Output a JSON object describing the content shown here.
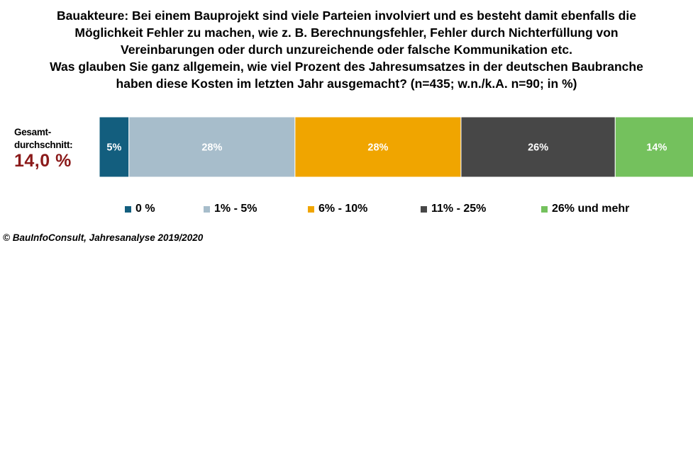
{
  "title_lines": [
    "Bauakteure: Bei einem Bauprojekt sind viele Parteien involviert und es besteht damit ebenfalls die",
    "Möglichkeit Fehler zu machen, wie z. B. Berechnungsfehler, Fehler durch Nichterfüllung von",
    "Vereinbarungen oder durch unzureichende oder falsche Kommunikation etc.",
    "Was glauben Sie ganz allgemein, wie viel Prozent des Jahresumsatzes in der deutschen Baubranche",
    "haben diese Kosten im letzten Jahr ausgemacht? (n=435; w.n./k.A. n=90; in %)"
  ],
  "average": {
    "label_lines": [
      "Gesamt-",
      "durchschnitt:"
    ],
    "value": "14,0 %"
  },
  "source": "© BauInfoConsult, Jahresanalyse 2019/2020",
  "chart_data": {
    "type": "bar",
    "orientation": "horizontal",
    "stacked": true,
    "percent_total": 100,
    "categories": [
      "0 %",
      "1% - 5%",
      "6% - 10%",
      "11% - 25%",
      "26% und mehr"
    ],
    "values": [
      5,
      28,
      28,
      26,
      14
    ],
    "data_labels": [
      "5%",
      "28%",
      "28%",
      "26%",
      "14%"
    ],
    "colors": [
      "#135e7e",
      "#a7bdcb",
      "#f0a500",
      "#474747",
      "#74c15d"
    ],
    "legend_placement": "bottom",
    "grid": false
  }
}
